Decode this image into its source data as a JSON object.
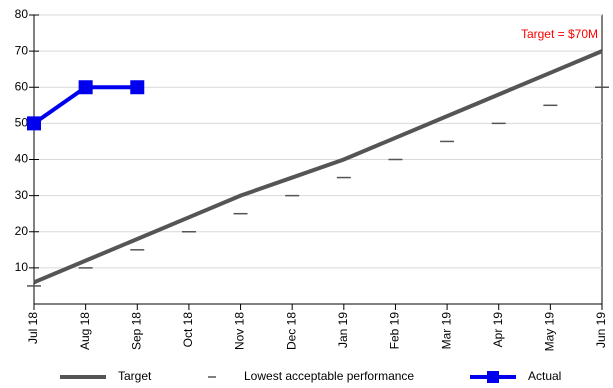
{
  "chart_data": {
    "type": "line",
    "categories": [
      "Jul 18",
      "Aug 18",
      "Sep 18",
      "Oct 18",
      "Nov 18",
      "Dec 18",
      "Jan 19",
      "Feb 19",
      "Mar 19",
      "Apr 19",
      "May 19",
      "Jun 19"
    ],
    "series": [
      {
        "name": "Target",
        "color": "#555555",
        "values": [
          6,
          12,
          18,
          24,
          30,
          35,
          40,
          46,
          52,
          58,
          64,
          70
        ]
      },
      {
        "name": "Lowest acceptable performance",
        "color": "#555555",
        "line": false,
        "marker": "dash",
        "values": [
          5,
          10,
          15,
          20,
          25,
          30,
          35,
          40,
          45,
          50,
          55,
          60
        ]
      },
      {
        "name": "Actual",
        "color": "#0000ee",
        "marker": "square",
        "values": [
          50,
          60,
          60,
          null,
          null,
          null,
          null,
          null,
          null,
          null,
          null,
          null
        ]
      }
    ],
    "annotation": {
      "text": "Target = $70M",
      "color": "#ff0000"
    },
    "ylim": [
      0,
      80
    ],
    "yticks": [
      10,
      20,
      30,
      40,
      50,
      60,
      70,
      80
    ],
    "grid": true,
    "legend": "bottom"
  }
}
